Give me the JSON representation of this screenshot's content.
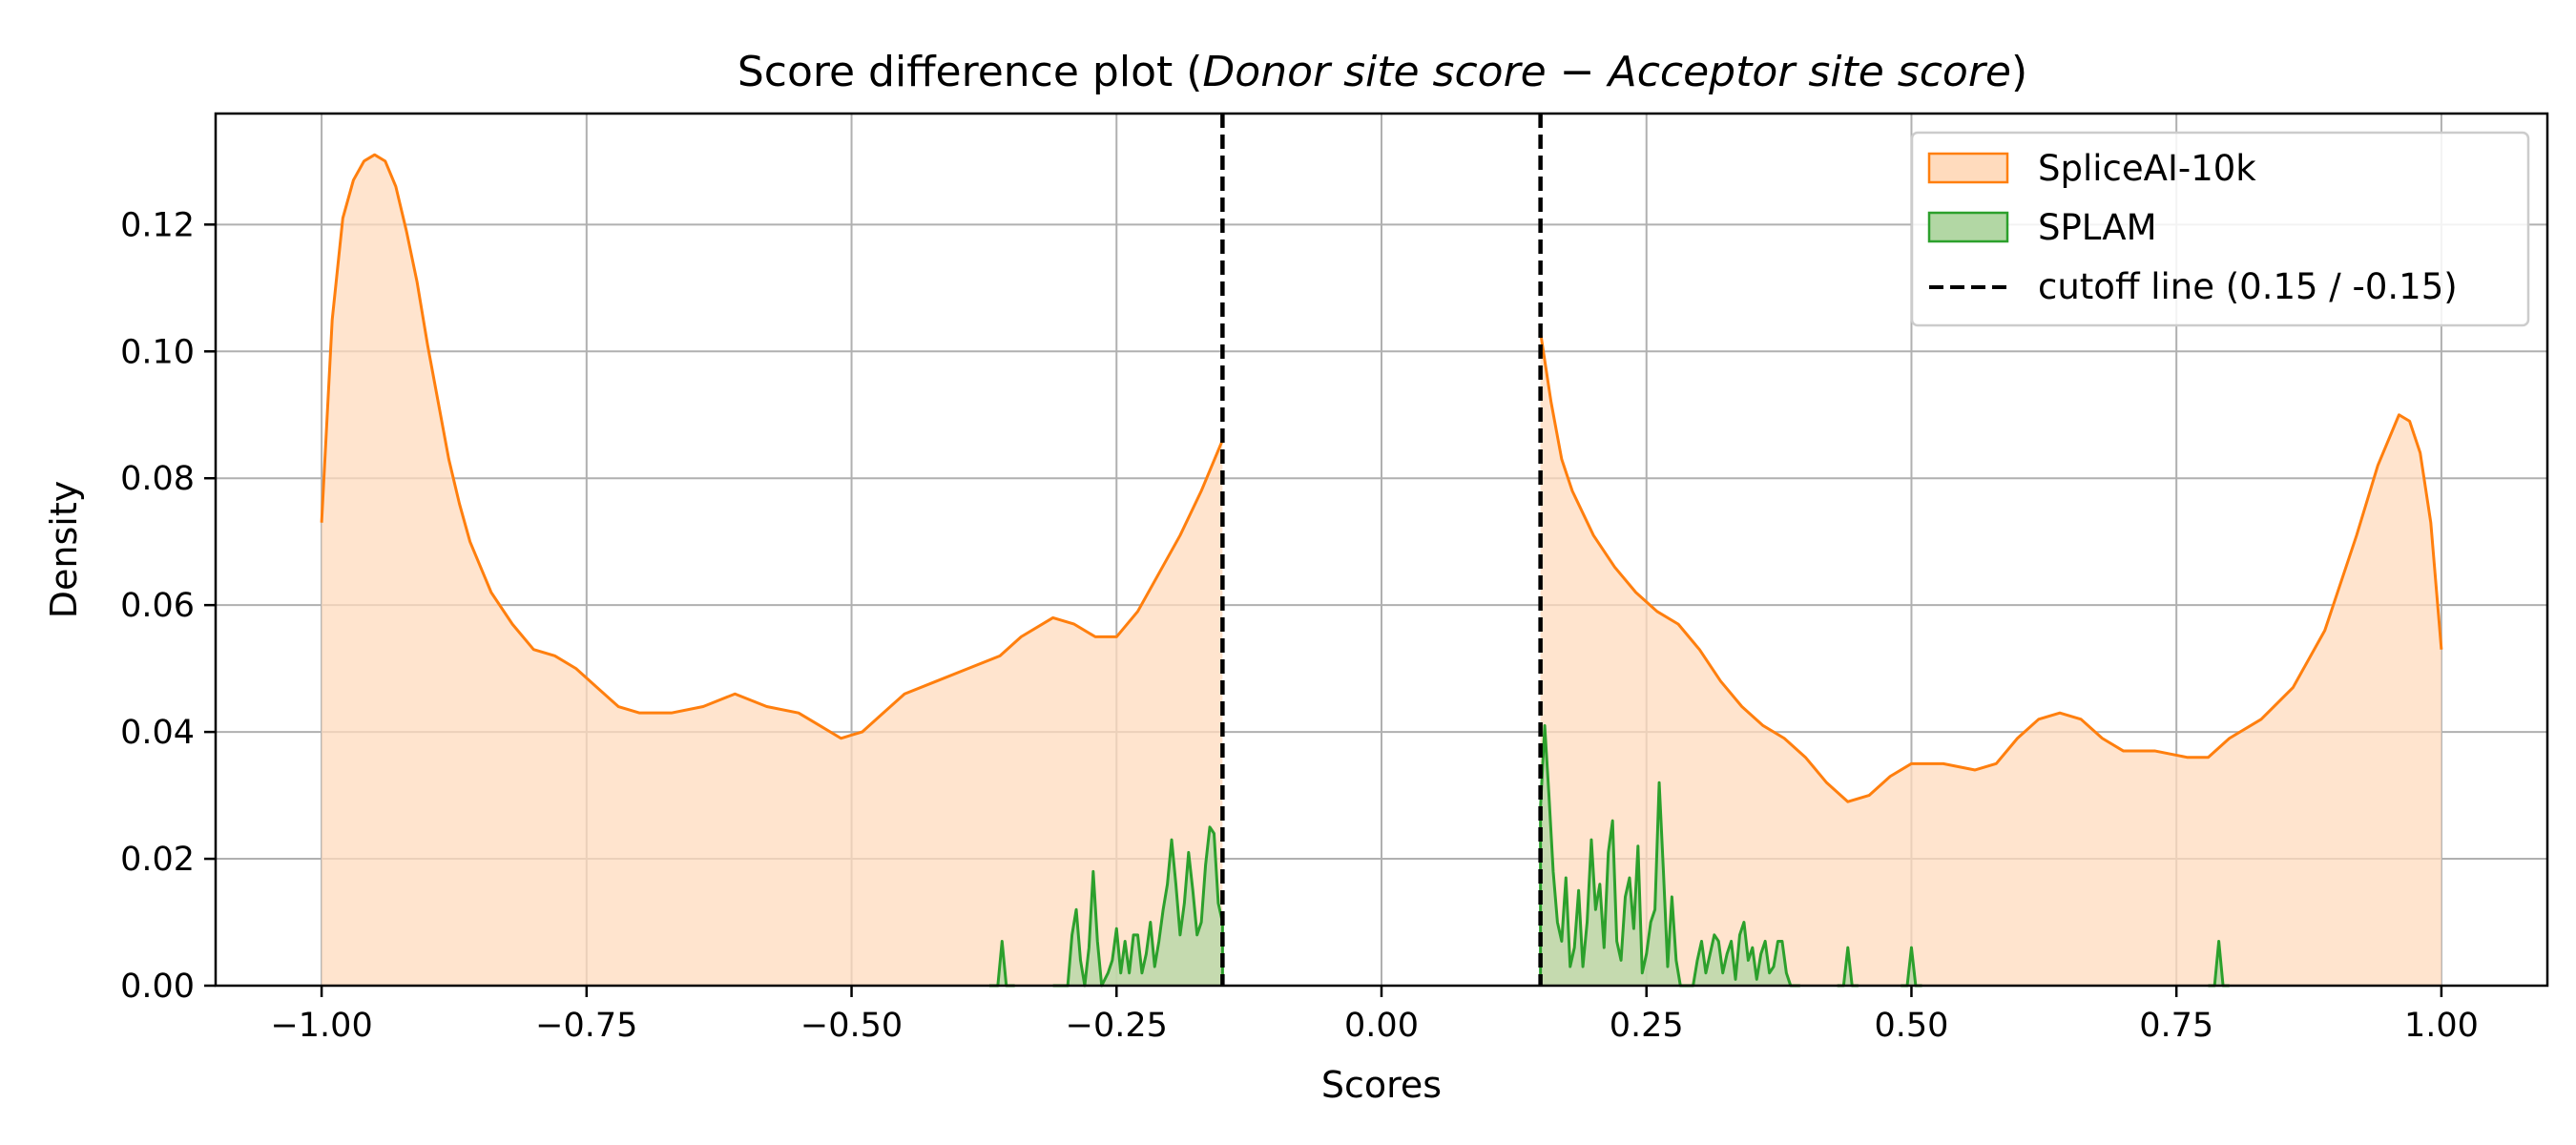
{
  "chart_data": {
    "type": "area",
    "title": {
      "prefix": "Score difference plot (",
      "term1": "Donor site score",
      "minus": " − ",
      "term2": "Acceptor site score",
      "suffix": ")"
    },
    "xlabel": "Scores",
    "ylabel": "Density",
    "xlim": [
      -1.1,
      1.1
    ],
    "ylim": [
      0,
      0.1375
    ],
    "x_ticks": [
      -1.0,
      -0.75,
      -0.5,
      -0.25,
      0.0,
      0.25,
      0.5,
      0.75,
      1.0
    ],
    "x_tick_labels": [
      "−1.00",
      "−0.75",
      "−0.50",
      "−0.25",
      "0.00",
      "0.25",
      "0.50",
      "0.75",
      "1.00"
    ],
    "y_ticks": [
      0.0,
      0.02,
      0.04,
      0.06,
      0.08,
      0.1,
      0.12
    ],
    "y_tick_labels": [
      "0.00",
      "0.02",
      "0.04",
      "0.06",
      "0.08",
      "0.10",
      "0.12"
    ],
    "grid": true,
    "legend_position": "top-right",
    "cutoffs": [
      -0.15,
      0.15
    ],
    "series": [
      {
        "name": "SpliceAI-10k",
        "style": "filled-kde",
        "color": "#ff7f0e",
        "fill": "#ffdbbd",
        "segments": [
          [
            [
              -1.0,
              0.073
            ],
            [
              -0.99,
              0.105
            ],
            [
              -0.98,
              0.121
            ],
            [
              -0.97,
              0.127
            ],
            [
              -0.96,
              0.13
            ],
            [
              -0.95,
              0.131
            ],
            [
              -0.94,
              0.13
            ],
            [
              -0.93,
              0.126
            ],
            [
              -0.92,
              0.119
            ],
            [
              -0.91,
              0.111
            ],
            [
              -0.9,
              0.101
            ],
            [
              -0.89,
              0.092
            ],
            [
              -0.88,
              0.083
            ],
            [
              -0.87,
              0.076
            ],
            [
              -0.86,
              0.07
            ],
            [
              -0.85,
              0.066
            ],
            [
              -0.84,
              0.062
            ],
            [
              -0.82,
              0.057
            ],
            [
              -0.8,
              0.053
            ],
            [
              -0.78,
              0.052
            ],
            [
              -0.76,
              0.05
            ],
            [
              -0.74,
              0.047
            ],
            [
              -0.72,
              0.044
            ],
            [
              -0.7,
              0.043
            ],
            [
              -0.67,
              0.043
            ],
            [
              -0.64,
              0.044
            ],
            [
              -0.61,
              0.046
            ],
            [
              -0.58,
              0.044
            ],
            [
              -0.55,
              0.043
            ],
            [
              -0.53,
              0.041
            ],
            [
              -0.51,
              0.039
            ],
            [
              -0.49,
              0.04
            ],
            [
              -0.47,
              0.043
            ],
            [
              -0.45,
              0.046
            ],
            [
              -0.42,
              0.048
            ],
            [
              -0.39,
              0.05
            ],
            [
              -0.36,
              0.052
            ],
            [
              -0.34,
              0.055
            ],
            [
              -0.31,
              0.058
            ],
            [
              -0.29,
              0.057
            ],
            [
              -0.27,
              0.055
            ],
            [
              -0.25,
              0.055
            ],
            [
              -0.23,
              0.059
            ],
            [
              -0.21,
              0.065
            ],
            [
              -0.19,
              0.071
            ],
            [
              -0.17,
              0.078
            ],
            [
              -0.15,
              0.086
            ]
          ],
          [
            [
              0.15,
              0.103
            ],
            [
              0.16,
              0.092
            ],
            [
              0.17,
              0.083
            ],
            [
              0.18,
              0.078
            ],
            [
              0.2,
              0.071
            ],
            [
              0.22,
              0.066
            ],
            [
              0.24,
              0.062
            ],
            [
              0.26,
              0.059
            ],
            [
              0.28,
              0.057
            ],
            [
              0.3,
              0.053
            ],
            [
              0.32,
              0.048
            ],
            [
              0.34,
              0.044
            ],
            [
              0.36,
              0.041
            ],
            [
              0.38,
              0.039
            ],
            [
              0.4,
              0.036
            ],
            [
              0.42,
              0.032
            ],
            [
              0.44,
              0.029
            ],
            [
              0.46,
              0.03
            ],
            [
              0.48,
              0.033
            ],
            [
              0.5,
              0.035
            ],
            [
              0.53,
              0.035
            ],
            [
              0.56,
              0.034
            ],
            [
              0.58,
              0.035
            ],
            [
              0.6,
              0.039
            ],
            [
              0.62,
              0.042
            ],
            [
              0.64,
              0.043
            ],
            [
              0.66,
              0.042
            ],
            [
              0.68,
              0.039
            ],
            [
              0.7,
              0.037
            ],
            [
              0.73,
              0.037
            ],
            [
              0.76,
              0.036
            ],
            [
              0.78,
              0.036
            ],
            [
              0.8,
              0.039
            ],
            [
              0.83,
              0.042
            ],
            [
              0.86,
              0.047
            ],
            [
              0.89,
              0.056
            ],
            [
              0.92,
              0.071
            ],
            [
              0.94,
              0.082
            ],
            [
              0.96,
              0.09
            ],
            [
              0.97,
              0.089
            ],
            [
              0.98,
              0.084
            ],
            [
              0.99,
              0.073
            ],
            [
              1.0,
              0.053
            ]
          ]
        ]
      },
      {
        "name": "SPLAM",
        "style": "filled-kde",
        "color": "#2ca02c",
        "fill": "#b2d7a4",
        "segments": [
          [
            [
              -0.37,
              0
            ],
            [
              -0.362,
              0
            ],
            [
              -0.358,
              0.007
            ],
            [
              -0.354,
              0
            ],
            [
              -0.346,
              0
            ]
          ],
          [
            [
              -0.31,
              0
            ],
            [
              -0.296,
              0
            ],
            [
              -0.292,
              0.008
            ],
            [
              -0.288,
              0.012
            ],
            [
              -0.284,
              0.004
            ],
            [
              -0.28,
              0
            ],
            [
              -0.276,
              0.006
            ],
            [
              -0.272,
              0.018
            ],
            [
              -0.268,
              0.007
            ],
            [
              -0.264,
              0
            ],
            [
              -0.258,
              0.002
            ],
            [
              -0.254,
              0.004
            ],
            [
              -0.25,
              0.009
            ],
            [
              -0.246,
              0.002
            ],
            [
              -0.242,
              0.007
            ],
            [
              -0.238,
              0.002
            ],
            [
              -0.234,
              0.008
            ],
            [
              -0.23,
              0.008
            ],
            [
              -0.226,
              0.002
            ],
            [
              -0.222,
              0.005
            ],
            [
              -0.218,
              0.01
            ],
            [
              -0.214,
              0.003
            ],
            [
              -0.21,
              0.007
            ],
            [
              -0.206,
              0.012
            ],
            [
              -0.202,
              0.016
            ],
            [
              -0.198,
              0.023
            ],
            [
              -0.194,
              0.016
            ],
            [
              -0.19,
              0.008
            ],
            [
              -0.186,
              0.013
            ],
            [
              -0.182,
              0.021
            ],
            [
              -0.178,
              0.015
            ],
            [
              -0.174,
              0.008
            ],
            [
              -0.17,
              0.01
            ],
            [
              -0.166,
              0.019
            ],
            [
              -0.162,
              0.025
            ],
            [
              -0.158,
              0.024
            ],
            [
              -0.154,
              0.013
            ],
            [
              -0.15,
              0.01
            ],
            [
              -0.15,
              0
            ]
          ],
          [
            [
              0.15,
              0
            ],
            [
              0.15,
              0.028
            ],
            [
              0.154,
              0.041
            ],
            [
              0.158,
              0.03
            ],
            [
              0.162,
              0.018
            ],
            [
              0.166,
              0.01
            ],
            [
              0.17,
              0.007
            ],
            [
              0.174,
              0.017
            ],
            [
              0.178,
              0.003
            ],
            [
              0.182,
              0.006
            ],
            [
              0.186,
              0.015
            ],
            [
              0.19,
              0.003
            ],
            [
              0.194,
              0.01
            ],
            [
              0.198,
              0.023
            ],
            [
              0.202,
              0.012
            ],
            [
              0.206,
              0.016
            ],
            [
              0.21,
              0.006
            ],
            [
              0.214,
              0.021
            ],
            [
              0.218,
              0.026
            ],
            [
              0.222,
              0.007
            ],
            [
              0.226,
              0.004
            ],
            [
              0.23,
              0.014
            ],
            [
              0.234,
              0.017
            ],
            [
              0.238,
              0.009
            ],
            [
              0.242,
              0.022
            ],
            [
              0.246,
              0.002
            ],
            [
              0.25,
              0.005
            ],
            [
              0.254,
              0.01
            ],
            [
              0.258,
              0.012
            ],
            [
              0.262,
              0.032
            ],
            [
              0.266,
              0.018
            ],
            [
              0.27,
              0.003
            ],
            [
              0.274,
              0.014
            ],
            [
              0.278,
              0.004
            ],
            [
              0.282,
              0
            ],
            [
              0.294,
              0
            ],
            [
              0.298,
              0.004
            ],
            [
              0.302,
              0.007
            ],
            [
              0.306,
              0.002
            ],
            [
              0.31,
              0.005
            ],
            [
              0.314,
              0.008
            ],
            [
              0.318,
              0.007
            ],
            [
              0.322,
              0.002
            ],
            [
              0.326,
              0.005
            ],
            [
              0.33,
              0.007
            ],
            [
              0.334,
              0.001
            ],
            [
              0.338,
              0.008
            ],
            [
              0.342,
              0.01
            ],
            [
              0.346,
              0.004
            ],
            [
              0.35,
              0.006
            ],
            [
              0.354,
              0.001
            ],
            [
              0.358,
              0.005
            ],
            [
              0.362,
              0.007
            ],
            [
              0.366,
              0.002
            ],
            [
              0.37,
              0.003
            ],
            [
              0.374,
              0.007
            ],
            [
              0.378,
              0.007
            ],
            [
              0.382,
              0.002
            ],
            [
              0.386,
              0
            ],
            [
              0.395,
              0
            ]
          ],
          [
            [
              0.43,
              0
            ],
            [
              0.436,
              0
            ],
            [
              0.44,
              0.006
            ],
            [
              0.444,
              0
            ],
            [
              0.45,
              0
            ]
          ],
          [
            [
              0.49,
              0
            ],
            [
              0.496,
              0
            ],
            [
              0.5,
              0.006
            ],
            [
              0.504,
              0
            ],
            [
              0.51,
              0
            ]
          ],
          [
            [
              0.78,
              0
            ],
            [
              0.786,
              0
            ],
            [
              0.79,
              0.007
            ],
            [
              0.794,
              0
            ],
            [
              0.8,
              0
            ]
          ]
        ]
      },
      {
        "name": "cutoff line (0.15 / -0.15)",
        "style": "dashed-vline",
        "color": "#000000"
      }
    ]
  }
}
